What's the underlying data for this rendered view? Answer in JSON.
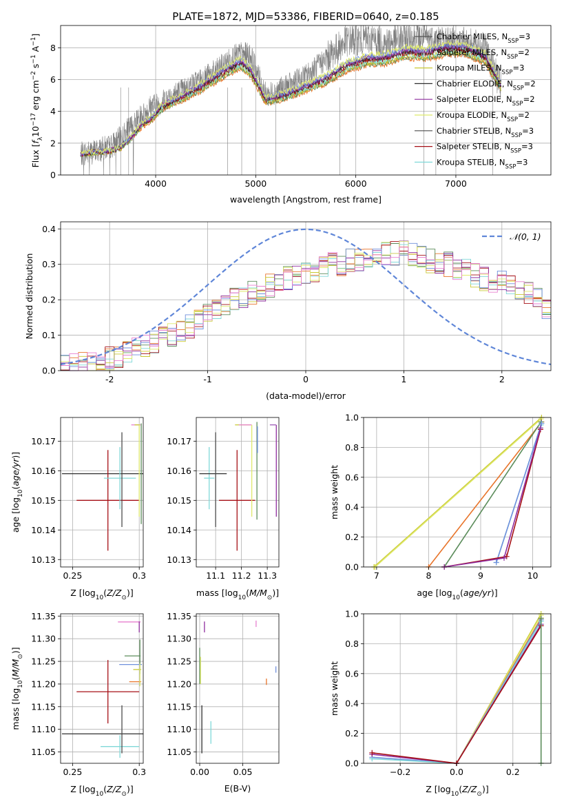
{
  "figure": {
    "title": "PLATE=1872, MJD=53386, FIBERID=0640, z=0.185"
  },
  "colors": {
    "Chabrier MILES": "#555555",
    "Salpeter MILES": "#9b59b6",
    "Kroupa MILES": "#c8c832",
    "Chabrier ELODIE": "#2d2d2d",
    "Salpeter ELODIE": "#8e2c9e",
    "Kroupa ELODIE": "#dfe96b",
    "Chabrier STELIB": "#4b4b4b",
    "Salpeter STELIB": "#a50f15",
    "Kroupa STELIB": "#7fd8d8",
    "extra_orange": "#e8742a",
    "extra_green": "#5b8c5a",
    "extra_blue": "#6f8fdc",
    "extra_pink": "#e77fcf",
    "gaussian": "#5f86d8"
  },
  "chart_data": [
    {
      "id": "spectrum",
      "type": "line",
      "xlabel": "wavelength [Angstrom, rest frame]",
      "ylabel": "Flux [f_λ10^-17 erg cm^-2 s^-1 A^-1]",
      "xlim": [
        3050,
        7950
      ],
      "ylim": [
        0,
        9.4
      ],
      "xticks": [
        4000,
        5000,
        6000,
        7000
      ],
      "yticks": [
        0,
        2,
        4,
        6,
        8
      ],
      "legend_position": "top-right",
      "legend": [
        {
          "label": "Chabrier MILES, N_SSP=3",
          "main": "Chabrier MILES, N",
          "sub": "SSP",
          "tail": "=3"
        },
        {
          "label": "Salpeter MILES, N_SSP=2",
          "main": "Salpeter MILES, N",
          "sub": "SSP",
          "tail": "=2"
        },
        {
          "label": "Kroupa MILES, N_SSP=3",
          "main": "Kroupa MILES, N",
          "sub": "SSP",
          "tail": "=3"
        },
        {
          "label": "Chabrier ELODIE, N_SSP=2",
          "main": "Chabrier ELODIE, N",
          "sub": "SSP",
          "tail": "=2"
        },
        {
          "label": "Salpeter ELODIE, N_SSP=2",
          "main": "Salpeter ELODIE, N",
          "sub": "SSP",
          "tail": "=2"
        },
        {
          "label": "Kroupa ELODIE, N_SSP=2",
          "main": "Kroupa ELODIE, N",
          "sub": "SSP",
          "tail": "=2"
        },
        {
          "label": "Chabrier STELIB, N_SSP=3",
          "main": "Chabrier STELIB, N",
          "sub": "SSP",
          "tail": "=3"
        },
        {
          "label": "Salpeter STELIB, N_SSP=3",
          "main": "Salpeter STELIB, N",
          "sub": "SSP",
          "tail": "=3"
        },
        {
          "label": "Kroupa STELIB, N_SSP=3",
          "main": "Kroupa STELIB, N",
          "sub": "SSP",
          "tail": "=3"
        }
      ],
      "model_continuum": {
        "wavelength": [
          3250,
          3400,
          3550,
          3650,
          3750,
          3850,
          3950,
          4050,
          4150,
          4300,
          4450,
          4600,
          4750,
          4850,
          4950,
          5100,
          5300,
          5500,
          5700,
          5900,
          6100,
          6300,
          6500,
          6700,
          6900,
          7100,
          7300,
          7450
        ],
        "flux": [
          1.3,
          1.45,
          1.5,
          1.75,
          2.3,
          3.1,
          3.5,
          4.2,
          4.55,
          5.0,
          5.5,
          6.1,
          6.7,
          7.0,
          6.5,
          4.7,
          5.0,
          5.5,
          6.0,
          6.8,
          7.2,
          7.3,
          7.7,
          7.6,
          7.9,
          7.9,
          7.3,
          5.6
        ]
      },
      "data_envelope": {
        "wavelength": [
          3250,
          3400,
          3550,
          3650,
          3750,
          3850,
          3950,
          4050,
          4150,
          4300,
          4450,
          4600,
          4750,
          4850,
          4950,
          5100,
          5300,
          5500,
          5700,
          5900,
          6100,
          6300,
          6500,
          6700,
          6900,
          7100,
          7300,
          7450
        ],
        "flux": [
          1.3,
          1.5,
          1.8,
          2.3,
          3.0,
          3.6,
          4.3,
          4.5,
          5.0,
          5.4,
          6.0,
          6.5,
          7.3,
          7.6,
          7.5,
          5.0,
          5.5,
          6.2,
          7.3,
          8.4,
          8.6,
          8.3,
          8.6,
          8.6,
          8.4,
          8.3,
          7.9,
          5.5
        ]
      }
    },
    {
      "id": "residuals",
      "type": "line",
      "xlabel": "(data-model)/error",
      "ylabel": "Normed distribution",
      "xlim": [
        -2.5,
        2.5
      ],
      "ylim": [
        0,
        0.42
      ],
      "xticks": [
        -2,
        -1,
        0,
        1,
        2
      ],
      "yticks": [
        0.0,
        0.1,
        0.2,
        0.3,
        0.4
      ],
      "gaussian_label": "𝒩(0, 1)",
      "histogram_base": [
        0.015,
        0.02,
        0.022,
        0.025,
        0.03,
        0.035,
        0.04,
        0.05,
        0.06,
        0.07,
        0.078,
        0.09,
        0.1,
        0.11,
        0.125,
        0.14,
        0.16,
        0.18,
        0.19,
        0.2,
        0.21,
        0.22,
        0.23,
        0.24,
        0.25,
        0.26,
        0.27,
        0.27,
        0.28,
        0.29,
        0.3,
        0.3,
        0.31,
        0.31,
        0.32,
        0.32,
        0.33,
        0.33,
        0.34,
        0.33,
        0.32,
        0.31,
        0.3,
        0.3,
        0.29,
        0.28,
        0.27,
        0.26,
        0.25,
        0.25,
        0.24,
        0.23,
        0.22,
        0.2,
        0.18
      ]
    },
    {
      "id": "age-vs-Z",
      "type": "scatter",
      "xlabel": "Z [log10(Z/Z⊙)]",
      "ylabel": "age  [log10(age/yr)]",
      "xlim": [
        0.241,
        0.303
      ],
      "ylim": [
        10.1275,
        10.178
      ],
      "xticks": [
        0.25,
        0.3
      ],
      "yticks": [
        10.13,
        10.14,
        10.15,
        10.16,
        10.17
      ],
      "points": [
        {
          "x": 0.2725,
          "y": 10.159,
          "xerr": 0.0305,
          "yerr": 0.0,
          "color": "#2d2d2d"
        },
        {
          "x": 0.2765,
          "y": 10.15,
          "xerr": 0.0235,
          "yerr": 0.017,
          "color": "#a50f15"
        },
        {
          "x": 0.2855,
          "y": 10.1575,
          "xerr": 0.012,
          "yerr": 0.0105,
          "color": "#7fd8d8"
        },
        {
          "x": 0.287,
          "y": 10.157,
          "xerr": 0.0,
          "yerr": 0.016,
          "color": "#4b4b4b"
        },
        {
          "x": 0.2975,
          "y": 10.1755,
          "xerr": 0.0035,
          "yerr": 0.0,
          "color": "#e77fcf"
        },
        {
          "x": 0.2985,
          "y": 10.1755,
          "xerr": 0.002,
          "yerr": 0.0,
          "color": "#c8c832"
        },
        {
          "x": 0.3,
          "y": 10.16,
          "xerr": 0.0,
          "yerr": 0.0155,
          "color": "#dfe96b"
        },
        {
          "x": 0.3015,
          "y": 10.159,
          "xerr": 0.0,
          "yerr": 0.017,
          "color": "#5b8c5a"
        }
      ]
    },
    {
      "id": "age-vs-mass",
      "type": "scatter",
      "xlabel": "mass [log10(M/M⊙)]",
      "ylabel": "",
      "xlim": [
        11.025,
        11.345
      ],
      "ylim": [
        10.1275,
        10.178
      ],
      "xticks": [
        11.1,
        11.2,
        11.3
      ],
      "xticklabels": [
        "11.1",
        "11.2",
        "11.3"
      ],
      "yticks": [
        10.13,
        10.14,
        10.15,
        10.16,
        10.17
      ],
      "points": [
        {
          "x": 11.075,
          "y": 10.1575,
          "xerr": 0.02,
          "yerr": 0.0105,
          "color": "#7fd8d8"
        },
        {
          "x": 11.09,
          "y": 10.159,
          "xerr": 0.053,
          "yerr": 0.0,
          "color": "#2d2d2d"
        },
        {
          "x": 11.1,
          "y": 10.157,
          "xerr": 0.0,
          "yerr": 0.016,
          "color": "#4b4b4b"
        },
        {
          "x": 11.183,
          "y": 10.15,
          "xerr": 0.07,
          "yerr": 0.017,
          "color": "#a50f15"
        },
        {
          "x": 11.205,
          "y": 10.1755,
          "xerr": 0.03,
          "yerr": 0.0,
          "color": "#c8c832"
        },
        {
          "x": 11.215,
          "y": 10.1755,
          "xerr": 0.025,
          "yerr": 0.0,
          "color": "#e77fcf"
        },
        {
          "x": 11.24,
          "y": 10.16,
          "xerr": 0.0,
          "yerr": 0.0155,
          "color": "#dfe96b"
        },
        {
          "x": 11.26,
          "y": 10.16,
          "xerr": 0.0,
          "yerr": 0.0165,
          "color": "#5b8c5a"
        },
        {
          "x": 11.262,
          "y": 10.1705,
          "xerr": 0.0,
          "yerr": 0.0045,
          "color": "#6f8fdc"
        },
        {
          "x": 11.335,
          "y": 10.16,
          "xerr": 0.0,
          "yerr": 0.0155,
          "color": "#8e2c9e"
        },
        {
          "x": 11.322,
          "y": 10.1755,
          "xerr": 0.012,
          "yerr": 0.0,
          "color": "#9b59b6"
        }
      ]
    },
    {
      "id": "mass-weight-vs-age",
      "type": "line",
      "xlabel": "age  [log10(age/yr)]",
      "ylabel": "mass weight",
      "xlim": [
        6.75,
        10.35
      ],
      "ylim": [
        0,
        1.0
      ],
      "xticks": [
        7,
        8,
        9,
        10
      ],
      "yticks": [
        0.0,
        0.2,
        0.4,
        0.6,
        0.8,
        1.0
      ],
      "series": [
        {
          "color": "#c8c832",
          "x": [
            6.95,
            10.17
          ],
          "y": [
            0.0,
            1.0
          ]
        },
        {
          "color": "#dfe96b",
          "x": [
            6.97,
            10.16
          ],
          "y": [
            0.0,
            0.99
          ]
        },
        {
          "color": "#e8742a",
          "x": [
            8.0,
            10.17
          ],
          "y": [
            0.0,
            0.97
          ]
        },
        {
          "color": "#5b8c5a",
          "x": [
            8.3,
            10.16
          ],
          "y": [
            0.0,
            0.97
          ]
        },
        {
          "color": "#7fd8d8",
          "x": [
            9.3,
            10.16
          ],
          "y": [
            0.03,
            0.95
          ]
        },
        {
          "color": "#6f8fdc",
          "x": [
            9.3,
            10.17
          ],
          "y": [
            0.03,
            0.96
          ]
        },
        {
          "color": "#a50f15",
          "x": [
            8.3,
            9.5,
            10.15
          ],
          "y": [
            0.0,
            0.07,
            0.92
          ]
        },
        {
          "color": "#8e2c9e",
          "x": [
            8.3,
            9.45,
            10.15
          ],
          "y": [
            0.0,
            0.06,
            0.93
          ]
        }
      ]
    },
    {
      "id": "mass-vs-Z",
      "type": "scatter",
      "xlabel": "Z [log10(Z/Z⊙)]",
      "ylabel": "mass [log10(M/M⊙)]",
      "xlim": [
        0.241,
        0.303
      ],
      "ylim": [
        11.025,
        11.355
      ],
      "xticks": [
        0.25,
        0.3
      ],
      "yticks": [
        11.05,
        11.1,
        11.15,
        11.2,
        11.25,
        11.3,
        11.35
      ],
      "points": [
        {
          "x": 0.2725,
          "y": 11.09,
          "xerr": 0.0305,
          "yerr": 0.0,
          "color": "#2d2d2d"
        },
        {
          "x": 0.2765,
          "y": 11.183,
          "xerr": 0.0235,
          "yerr": 0.07,
          "color": "#a50f15"
        },
        {
          "x": 0.2855,
          "y": 11.062,
          "xerr": 0.0145,
          "yerr": 0.025,
          "color": "#7fd8d8"
        },
        {
          "x": 0.287,
          "y": 11.1,
          "xerr": 0.0,
          "yerr": 0.053,
          "color": "#4b4b4b"
        },
        {
          "x": 0.2925,
          "y": 11.337,
          "xerr": 0.0085,
          "yerr": 0.0,
          "color": "#e77fcf"
        },
        {
          "x": 0.2935,
          "y": 11.243,
          "xerr": 0.0085,
          "yerr": 0.0,
          "color": "#6f8fdc"
        },
        {
          "x": 0.295,
          "y": 11.262,
          "xerr": 0.006,
          "yerr": 0.0,
          "color": "#5b8c5a"
        },
        {
          "x": 0.297,
          "y": 11.205,
          "xerr": 0.0045,
          "yerr": 0.0,
          "color": "#e8742a"
        },
        {
          "x": 0.2985,
          "y": 11.232,
          "xerr": 0.003,
          "yerr": 0.0,
          "color": "#c8c832"
        },
        {
          "x": 0.3,
          "y": 11.326,
          "xerr": 0.0,
          "yerr": 0.012,
          "color": "#8e2c9e"
        },
        {
          "x": 0.3005,
          "y": 11.26,
          "xerr": 0.0,
          "yerr": 0.038,
          "color": "#5b8c5a"
        },
        {
          "x": 0.3005,
          "y": 11.22,
          "xerr": 0.0,
          "yerr": 0.025,
          "color": "#dfe96b"
        }
      ]
    },
    {
      "id": "mass-vs-ebv",
      "type": "scatter",
      "xlabel": "E(B-V)",
      "ylabel": "",
      "xlim": [
        -0.004,
        0.092
      ],
      "ylim": [
        11.025,
        11.355
      ],
      "xticks": [
        0.0,
        0.05
      ],
      "xticklabels": [
        "0.00",
        "0.05"
      ],
      "yticks": [
        11.05,
        11.1,
        11.15,
        11.2,
        11.25,
        11.3,
        11.35
      ],
      "points": [
        {
          "x": 0.0,
          "y": 11.24,
          "xerr": 0.0,
          "yerr": 0.04,
          "color": "#5b8c5a"
        },
        {
          "x": 0.001,
          "y": 11.23,
          "xerr": 0.0,
          "yerr": 0.03,
          "color": "#dfe96b"
        },
        {
          "x": 0.0025,
          "y": 11.1,
          "xerr": 0.0,
          "yerr": 0.053,
          "color": "#2d2d2d"
        },
        {
          "x": 0.0055,
          "y": 11.326,
          "xerr": 0.0,
          "yerr": 0.012,
          "color": "#8e2c9e"
        },
        {
          "x": 0.013,
          "y": 11.093,
          "xerr": 0.0,
          "yerr": 0.025,
          "color": "#7fd8d8"
        },
        {
          "x": 0.0655,
          "y": 11.333,
          "xerr": 0.0,
          "yerr": 0.007,
          "color": "#e77fcf"
        },
        {
          "x": 0.0775,
          "y": 11.205,
          "xerr": 0.0,
          "yerr": 0.007,
          "color": "#e8742a"
        },
        {
          "x": 0.0885,
          "y": 11.232,
          "xerr": 0.0,
          "yerr": 0.007,
          "color": "#6f8fdc"
        }
      ]
    },
    {
      "id": "mass-weight-vs-Z",
      "type": "line",
      "xlabel": "Z [log10(Z/Z⊙)]",
      "ylabel": "mass weight",
      "xlim": [
        -0.33,
        0.335
      ],
      "ylim": [
        0,
        1.0
      ],
      "xticks": [
        -0.2,
        0.0,
        0.2
      ],
      "xticklabels": [
        "−0.2",
        "0.0",
        "0.2"
      ],
      "yticks": [
        0.0,
        0.2,
        0.4,
        0.6,
        0.8,
        1.0
      ],
      "series": [
        {
          "color": "#c8c832",
          "x": [
            0.0,
            0.3
          ],
          "y": [
            0.0,
            1.0
          ]
        },
        {
          "color": "#dfe96b",
          "x": [
            0.0,
            0.3
          ],
          "y": [
            0.0,
            0.99
          ]
        },
        {
          "color": "#e8742a",
          "x": [
            0.0,
            0.3
          ],
          "y": [
            0.0,
            0.97
          ]
        },
        {
          "color": "#6f8fdc",
          "x": [
            -0.3,
            0.0,
            0.3
          ],
          "y": [
            0.04,
            0.0,
            0.96
          ]
        },
        {
          "color": "#7fd8d8",
          "x": [
            -0.3,
            0.0,
            0.3
          ],
          "y": [
            0.03,
            0.0,
            0.95
          ]
        },
        {
          "color": "#8e2c9e",
          "x": [
            -0.3,
            0.0,
            0.3
          ],
          "y": [
            0.06,
            0.0,
            0.93
          ]
        },
        {
          "color": "#a50f15",
          "x": [
            -0.3,
            0.0,
            0.3
          ],
          "y": [
            0.07,
            0.0,
            0.92
          ]
        },
        {
          "color": "#5b8c5a",
          "x": [
            0.3,
            0.3
          ],
          "y": [
            0.0,
            0.97
          ]
        }
      ]
    }
  ]
}
